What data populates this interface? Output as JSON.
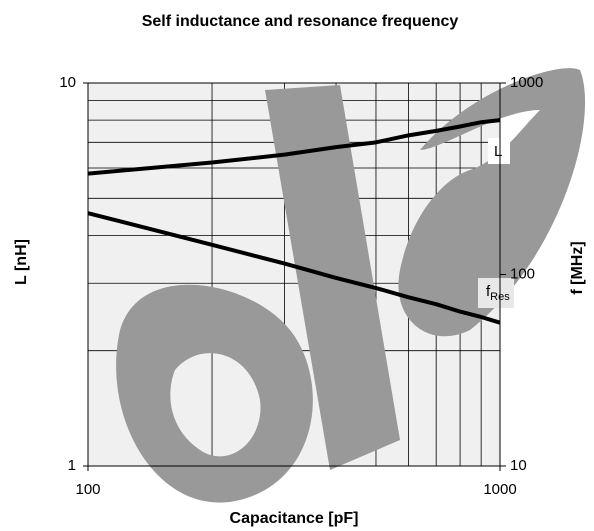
{
  "chart_data": {
    "type": "line",
    "title": "Self inductance and resonance frequency",
    "xlabel": "Capacitance [pF]",
    "ylabel": "L [nH]",
    "y2label": "f [MHz]",
    "xscale": "log",
    "yscale": "log",
    "y2scale": "log",
    "xlim": [
      100,
      1000
    ],
    "ylim": [
      1,
      10
    ],
    "y2lim": [
      10,
      1000
    ],
    "xticks": [
      100,
      1000
    ],
    "yticks": [
      1,
      10
    ],
    "y2ticks": [
      10,
      100,
      1000
    ],
    "xgrid_minor": [
      200,
      300,
      400,
      500,
      600,
      700,
      800,
      900
    ],
    "ygrid_minor": [
      2,
      3,
      4,
      5,
      6,
      7,
      8,
      9
    ],
    "grid": true,
    "x": [
      100,
      200,
      300,
      400,
      500,
      600,
      700,
      800,
      900,
      1000
    ],
    "series": [
      {
        "name": "L",
        "color": "#000000",
        "values": [
          5.8,
          6.2,
          6.5,
          6.8,
          7.0,
          7.3,
          7.5,
          7.7,
          7.9,
          8.0
        ]
      },
      {
        "name": "f",
        "subscript": "Res",
        "color": "#000000",
        "axis": "y2",
        "values": [
          209,
          143,
          114,
          96,
          85,
          76,
          70,
          64,
          60,
          56
        ]
      }
    ]
  }
}
